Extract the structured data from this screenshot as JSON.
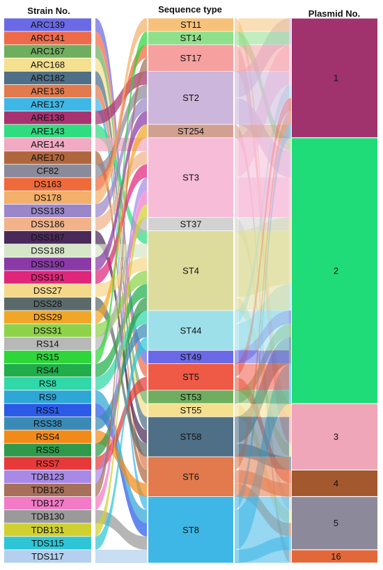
{
  "headers": {
    "strain": "Strain No.",
    "sequence": "Sequence type",
    "plasmid": "Plasmid No."
  },
  "strains": [
    {
      "label": "ARC139",
      "color": "#6a6ae6"
    },
    {
      "label": "ARC141",
      "color": "#ee6a4a"
    },
    {
      "label": "ARC167",
      "color": "#6fae5e"
    },
    {
      "label": "ARC168",
      "color": "#f4e08e"
    },
    {
      "label": "ARC182",
      "color": "#4e6f86"
    },
    {
      "label": "ARE136",
      "color": "#e27a4e"
    },
    {
      "label": "ARE137",
      "color": "#3fb7e6"
    },
    {
      "label": "ARE138",
      "color": "#a8326f"
    },
    {
      "label": "ARE143",
      "color": "#2fdc80"
    },
    {
      "label": "ARE144",
      "color": "#f2a9c2"
    },
    {
      "label": "ARE170",
      "color": "#b0663c"
    },
    {
      "label": "CF82",
      "color": "#8a8a9a"
    },
    {
      "label": "DS163",
      "color": "#ef6a3a"
    },
    {
      "label": "DS178",
      "color": "#f2b06a"
    },
    {
      "label": "DSS183",
      "color": "#9a86c8"
    },
    {
      "label": "DSS186",
      "color": "#f2b38a"
    },
    {
      "label": "DSS187",
      "color": "#4a2a5a"
    },
    {
      "label": "DSS188",
      "color": "#d6e6c8"
    },
    {
      "label": "DSS190",
      "color": "#8a3aa6"
    },
    {
      "label": "DSS191",
      "color": "#e0267a"
    },
    {
      "label": "DSS27",
      "color": "#f6d88a"
    },
    {
      "label": "DSS28",
      "color": "#5a6a6a"
    },
    {
      "label": "DSS29",
      "color": "#f2a628"
    },
    {
      "label": "DSS31",
      "color": "#8ed24a"
    },
    {
      "label": "RS14",
      "color": "#b8b8b8"
    },
    {
      "label": "RS15",
      "color": "#2ed63a"
    },
    {
      "label": "RS44",
      "color": "#1fae4a"
    },
    {
      "label": "RS8",
      "color": "#2fd8a6"
    },
    {
      "label": "RS9",
      "color": "#2ea6d6"
    },
    {
      "label": "RSS1",
      "color": "#2a5ae6"
    },
    {
      "label": "RSS38",
      "color": "#3a8ab6"
    },
    {
      "label": "RSS4",
      "color": "#f28a1a"
    },
    {
      "label": "RSS6",
      "color": "#2e9a4a"
    },
    {
      "label": "RSS7",
      "color": "#e63a3a"
    },
    {
      "label": "TDB123",
      "color": "#a88ae6"
    },
    {
      "label": "TDB126",
      "color": "#a6705a"
    },
    {
      "label": "TDB127",
      "color": "#f27ac6"
    },
    {
      "label": "TDB130",
      "color": "#9a9a9a"
    },
    {
      "label": "TDB131",
      "color": "#d0d030"
    },
    {
      "label": "TDS115",
      "color": "#2ec6d6"
    },
    {
      "label": "TDS117",
      "color": "#b4d0ee"
    }
  ],
  "sequence_types": [
    {
      "label": "ST11",
      "color": "#f6c27a",
      "count": 1
    },
    {
      "label": "ST14",
      "color": "#8ee08a",
      "count": 1
    },
    {
      "label": "ST17",
      "color": "#f6a0a0",
      "count": 2
    },
    {
      "label": "ST2",
      "color": "#cdb6dc",
      "count": 4
    },
    {
      "label": "ST254",
      "color": "#d2a090",
      "count": 1
    },
    {
      "label": "ST3",
      "color": "#f6bcd8",
      "count": 6
    },
    {
      "label": "ST37",
      "color": "#d2d2d2",
      "count": 1
    },
    {
      "label": "ST4",
      "color": "#dedc9c",
      "count": 6
    },
    {
      "label": "ST44",
      "color": "#9ee0ea",
      "count": 3
    },
    {
      "label": "ST49",
      "color": "#6a6ae6",
      "count": 1
    },
    {
      "label": "ST5",
      "color": "#ee5a46",
      "count": 2
    },
    {
      "label": "ST53",
      "color": "#6fae5e",
      "count": 1
    },
    {
      "label": "ST55",
      "color": "#f4e08e",
      "count": 1
    },
    {
      "label": "ST58",
      "color": "#4e6f86",
      "count": 3
    },
    {
      "label": "ST6",
      "color": "#e27a4e",
      "count": 3
    },
    {
      "label": "ST8",
      "color": "#3fb7e6",
      "count": 5
    }
  ],
  "plasmids": [
    {
      "label": "1",
      "color": "#a0326e",
      "count": 9
    },
    {
      "label": "2",
      "color": "#1fdc78",
      "count": 20
    },
    {
      "label": "3",
      "color": "#eea6b8",
      "count": 5
    },
    {
      "label": "4",
      "color": "#a4582e",
      "count": 2
    },
    {
      "label": "5",
      "color": "#8c8a9a",
      "count": 4
    },
    {
      "label": "16",
      "color": "#e2683a",
      "count": 1
    }
  ],
  "strain_to_st": [
    {
      "strain": "ARC139",
      "st": "ST49"
    },
    {
      "strain": "ARC141",
      "st": "ST5"
    },
    {
      "strain": "ARC167",
      "st": "ST53"
    },
    {
      "strain": "ARC168",
      "st": "ST55"
    },
    {
      "strain": "ARC182",
      "st": "ST58"
    },
    {
      "strain": "ARE136",
      "st": "ST6"
    },
    {
      "strain": "ARE137",
      "st": "ST8"
    },
    {
      "strain": "ARE138",
      "st": "ST2"
    },
    {
      "strain": "ARE143",
      "st": "ST4"
    },
    {
      "strain": "ARE144",
      "st": "ST3"
    },
    {
      "strain": "ARE170",
      "st": "ST6"
    },
    {
      "strain": "CF82",
      "st": "ST2"
    },
    {
      "strain": "DS163",
      "st": "ST17"
    },
    {
      "strain": "DS178",
      "st": "ST11"
    },
    {
      "strain": "DSS183",
      "st": "ST2"
    },
    {
      "strain": "DSS186",
      "st": "ST3"
    },
    {
      "strain": "DSS187",
      "st": "ST58"
    },
    {
      "strain": "DSS188",
      "st": "ST4"
    },
    {
      "strain": "DSS190",
      "st": "ST2"
    },
    {
      "strain": "DSS191",
      "st": "ST3"
    },
    {
      "strain": "DSS27",
      "st": "ST4"
    },
    {
      "strain": "DSS28",
      "st": "ST58"
    },
    {
      "strain": "DSS29",
      "st": "ST254"
    },
    {
      "strain": "DSS31",
      "st": "ST4"
    },
    {
      "strain": "RS14",
      "st": "ST37"
    },
    {
      "strain": "RS15",
      "st": "ST14"
    },
    {
      "strain": "RS44",
      "st": "ST4"
    },
    {
      "strain": "RS8",
      "st": "ST44"
    },
    {
      "strain": "RS9",
      "st": "ST8"
    },
    {
      "strain": "RSS1",
      "st": "ST8"
    },
    {
      "strain": "RSS38",
      "st": "ST44"
    },
    {
      "strain": "RSS4",
      "st": "ST6"
    },
    {
      "strain": "RSS6",
      "st": "ST4"
    },
    {
      "strain": "RSS7",
      "st": "ST5"
    },
    {
      "strain": "TDB123",
      "st": "ST3"
    },
    {
      "strain": "TDB126",
      "st": "ST17"
    },
    {
      "strain": "TDB127",
      "st": "ST3"
    },
    {
      "strain": "TDB130",
      "st": "ST8"
    },
    {
      "strain": "TDB131",
      "st": "ST3"
    },
    {
      "strain": "TDS115",
      "st": "ST44"
    },
    {
      "strain": "TDS117",
      "st": "ST8"
    }
  ],
  "st_to_plasmid": [
    {
      "st": "ST11",
      "plasmid": "3",
      "value": 1
    },
    {
      "st": "ST14",
      "plasmid": "2",
      "value": 1
    },
    {
      "st": "ST17",
      "plasmid": "3",
      "value": 2
    },
    {
      "st": "ST2",
      "plasmid": "1",
      "value": 2
    },
    {
      "st": "ST2",
      "plasmid": "2",
      "value": 2
    },
    {
      "st": "ST254",
      "plasmid": "16",
      "value": 1
    },
    {
      "st": "ST3",
      "plasmid": "1",
      "value": 3
    },
    {
      "st": "ST3",
      "plasmid": "2",
      "value": 3
    },
    {
      "st": "ST37",
      "plasmid": "5",
      "value": 1
    },
    {
      "st": "ST4",
      "plasmid": "2",
      "value": 5
    },
    {
      "st": "ST4",
      "plasmid": "3",
      "value": 1
    },
    {
      "st": "ST44",
      "plasmid": "1",
      "value": 1
    },
    {
      "st": "ST44",
      "plasmid": "2",
      "value": 2
    },
    {
      "st": "ST49",
      "plasmid": "2",
      "value": 1
    },
    {
      "st": "ST5",
      "plasmid": "1",
      "value": 1
    },
    {
      "st": "ST5",
      "plasmid": "4",
      "value": 1
    },
    {
      "st": "ST53",
      "plasmid": "2",
      "value": 1
    },
    {
      "st": "ST55",
      "plasmid": "5",
      "value": 1
    },
    {
      "st": "ST58",
      "plasmid": "2",
      "value": 2
    },
    {
      "st": "ST58",
      "plasmid": "3",
      "value": 1
    },
    {
      "st": "ST6",
      "plasmid": "1",
      "value": 1
    },
    {
      "st": "ST6",
      "plasmid": "4",
      "value": 1
    },
    {
      "st": "ST6",
      "plasmid": "5",
      "value": 1
    },
    {
      "st": "ST8",
      "plasmid": "1",
      "value": 1
    },
    {
      "st": "ST8",
      "plasmid": "2",
      "value": 3
    },
    {
      "st": "ST8",
      "plasmid": "5",
      "value": 1
    }
  ]
}
